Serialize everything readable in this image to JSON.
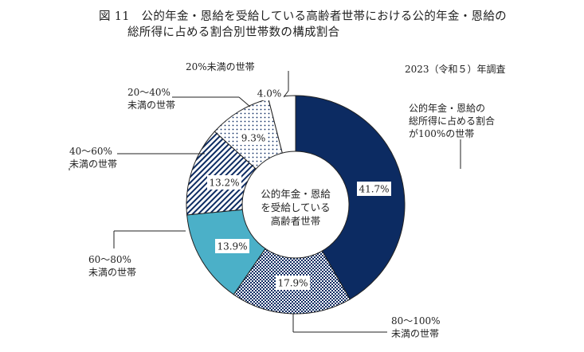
{
  "chart_data": {
    "type": "pie",
    "title_line1": "図 11　公的年金・恩給を受給している高齢者世帯における公的年金・恩給の",
    "title_line2": "総所得に占める割合別世帯数の構成割合",
    "subtitle": "2023（令和５）年調査",
    "center_label": [
      "公的年金・恩給",
      "を受給している",
      "高齢者世帯"
    ],
    "unit": "%",
    "slices": [
      {
        "value": 41.7,
        "value_label": "41.7%",
        "label_lines": [
          "公的年金・恩給の",
          "総所得に占める割合",
          "が100%の世帯"
        ],
        "color": "#0c2b62",
        "pattern": "solid"
      },
      {
        "value": 17.9,
        "value_label": "17.9%",
        "label_lines": [
          "80～100%",
          "未満の世帯"
        ],
        "color": "#0c2b62",
        "pattern": "checker"
      },
      {
        "value": 13.9,
        "value_label": "13.9%",
        "label_lines": [
          "60～80%",
          "未満の世帯"
        ],
        "color": "#4bb0c8",
        "pattern": "solid"
      },
      {
        "value": 13.2,
        "value_label": "13.2%",
        "label_lines": [
          "40～60%",
          "未満の世帯"
        ],
        "color": "#0c2b62",
        "pattern": "hatch"
      },
      {
        "value": 9.3,
        "value_label": "9.3%",
        "label_lines": [
          "20～40%",
          "未満の世帯"
        ],
        "color": "#0c2b62",
        "pattern": "dots"
      },
      {
        "value": 4.0,
        "value_label": "4.0%",
        "label_lines": [
          "20%未満の世帯"
        ],
        "color": "#ffffff",
        "pattern": "solid"
      }
    ]
  }
}
